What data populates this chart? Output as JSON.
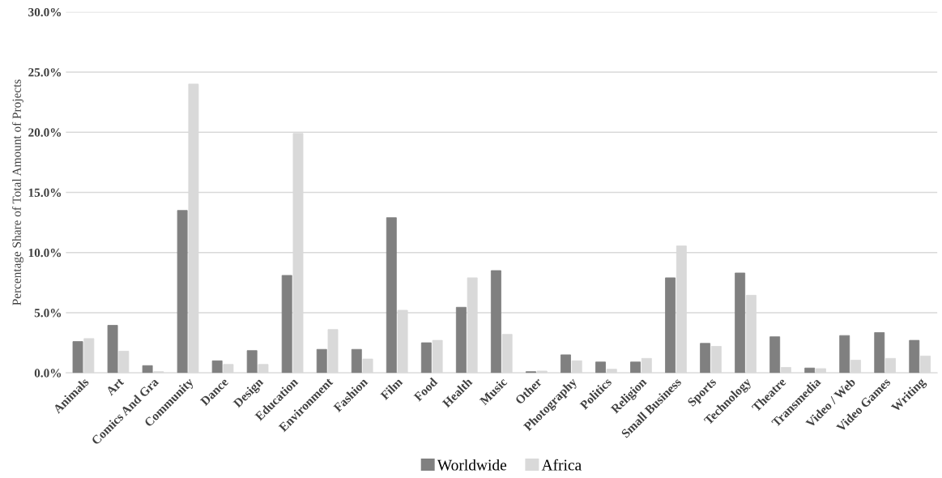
{
  "chart_data": {
    "type": "bar",
    "ylabel": "Percentage Share of Total Amount of Projects",
    "categories": [
      "Animals",
      "Art",
      "Comics And Gra",
      "Community",
      "Dance",
      "Design",
      "Education",
      "Environment",
      "Fashion",
      "Film",
      "Food",
      "Health",
      "Music",
      "Other",
      "Photography",
      "Politics",
      "Religion",
      "Small Business",
      "Sports",
      "Technology",
      "Theatre",
      "Transmedia",
      "Video / Web",
      "Video Games",
      "Writing"
    ],
    "series": [
      {
        "name": "Worldwide",
        "color": "#808080",
        "values": [
          2.6,
          3.95,
          0.6,
          13.5,
          1.0,
          1.85,
          8.1,
          1.95,
          1.95,
          12.9,
          2.5,
          5.45,
          8.5,
          0.1,
          1.5,
          0.9,
          0.9,
          7.9,
          2.45,
          8.3,
          3.0,
          0.4,
          3.1,
          3.35,
          2.7
        ]
      },
      {
        "name": "Africa",
        "color": "#d9d9d9",
        "values": [
          2.85,
          1.8,
          0.1,
          24.0,
          0.7,
          0.7,
          19.9,
          3.6,
          1.15,
          5.2,
          2.7,
          7.9,
          3.2,
          0.15,
          1.0,
          0.3,
          1.2,
          10.55,
          2.2,
          6.45,
          0.45,
          0.35,
          1.05,
          1.2,
          1.4
        ]
      }
    ],
    "ylim": [
      0,
      30
    ],
    "yticks": [
      {
        "value": 0,
        "label": "0.0%"
      },
      {
        "value": 5,
        "label": "5.0%"
      },
      {
        "value": 10,
        "label": "10.0%"
      },
      {
        "value": 15,
        "label": "15.0%"
      },
      {
        "value": 20,
        "label": "20.0%"
      },
      {
        "value": 25,
        "label": "25.0%"
      },
      {
        "value": 30,
        "label": "30.0%"
      }
    ],
    "grid": "y",
    "legend": "bottom"
  }
}
